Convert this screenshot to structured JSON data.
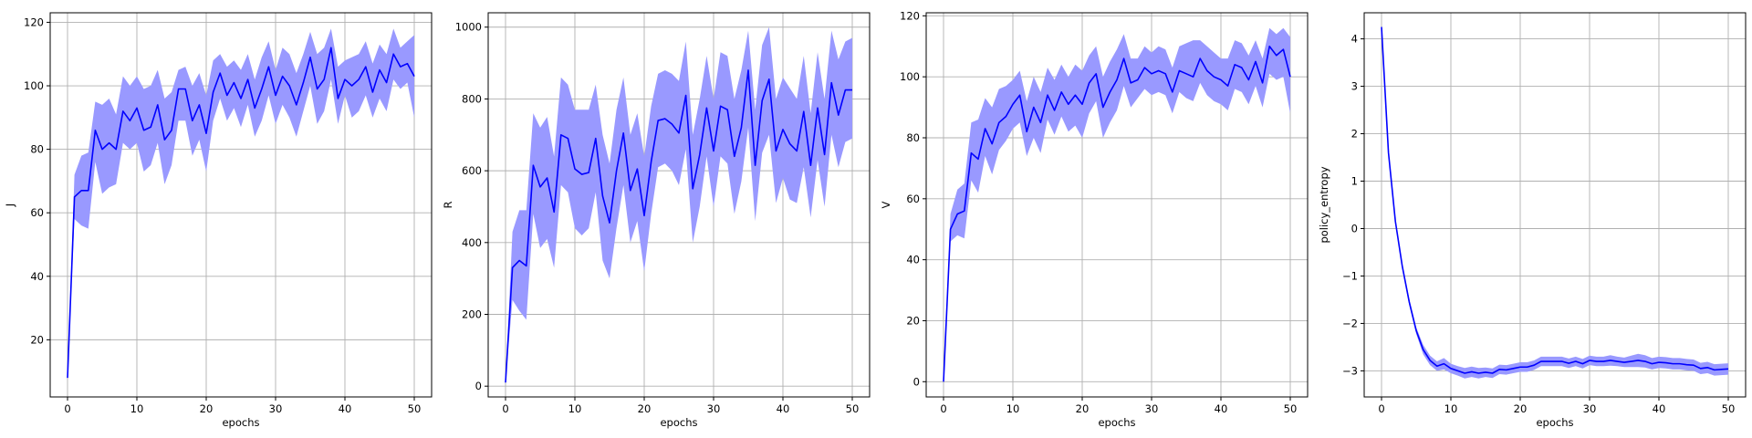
{
  "colors": {
    "line": "#0000ff",
    "band": "#9999ff",
    "grid": "#b0b0b0"
  },
  "chart_data": [
    {
      "type": "line",
      "xlabel": "epochs",
      "ylabel": "J",
      "xlim": [
        -2.5,
        52.5
      ],
      "ylim": [
        2,
        123
      ],
      "xticks": [
        0,
        10,
        20,
        30,
        40,
        50
      ],
      "yticks": [
        20,
        40,
        60,
        80,
        100,
        120
      ],
      "grid": true,
      "x": [
        0,
        1,
        2,
        3,
        4,
        5,
        6,
        7,
        8,
        9,
        10,
        11,
        12,
        13,
        14,
        15,
        16,
        17,
        18,
        19,
        20,
        21,
        22,
        23,
        24,
        25,
        26,
        27,
        28,
        29,
        30,
        31,
        32,
        33,
        34,
        35,
        36,
        37,
        38,
        39,
        40,
        41,
        42,
        43,
        44,
        45,
        46,
        47,
        48,
        49,
        50
      ],
      "series": [
        {
          "values": [
            8,
            65,
            67,
            67,
            86,
            80,
            82,
            80,
            92,
            89,
            93,
            86,
            87,
            94,
            83,
            86,
            99,
            99,
            89,
            94,
            85,
            98,
            104,
            97,
            101,
            96,
            102,
            93,
            99,
            106,
            97,
            103,
            100,
            94,
            101,
            109,
            99,
            102,
            112,
            96,
            102,
            100,
            102,
            106,
            98,
            105,
            101,
            110,
            106,
            107,
            103
          ],
          "lower": [
            8,
            58,
            56,
            55,
            76,
            66,
            68,
            69,
            82,
            80,
            82,
            73,
            75,
            82,
            69,
            75,
            89,
            89,
            78,
            83,
            73,
            89,
            96,
            89,
            93,
            87,
            94,
            84,
            89,
            97,
            88,
            94,
            90,
            84,
            92,
            100,
            88,
            92,
            102,
            88,
            97,
            90,
            92,
            97,
            90,
            96,
            92,
            102,
            99,
            101,
            90
          ],
          "upper": [
            8,
            72,
            78,
            79,
            95,
            94,
            96,
            91,
            103,
            100,
            103,
            99,
            100,
            105,
            96,
            98,
            105,
            106,
            100,
            104,
            97,
            108,
            110,
            106,
            108,
            105,
            110,
            102,
            109,
            114,
            105,
            112,
            110,
            104,
            110,
            117,
            110,
            112,
            118,
            106,
            108,
            109,
            110,
            114,
            107,
            113,
            110,
            118,
            112,
            114,
            116
          ]
        }
      ]
    },
    {
      "type": "line",
      "xlabel": "epochs",
      "ylabel": "R",
      "xlim": [
        -2.5,
        52.5
      ],
      "ylim": [
        -30,
        1040
      ],
      "xticks": [
        0,
        10,
        20,
        30,
        40,
        50
      ],
      "yticks": [
        0,
        200,
        400,
        600,
        800,
        1000
      ],
      "grid": true,
      "x": [
        0,
        1,
        2,
        3,
        4,
        5,
        6,
        7,
        8,
        9,
        10,
        11,
        12,
        13,
        14,
        15,
        16,
        17,
        18,
        19,
        20,
        21,
        22,
        23,
        24,
        25,
        26,
        27,
        28,
        29,
        30,
        31,
        32,
        33,
        34,
        35,
        36,
        37,
        38,
        39,
        40,
        41,
        42,
        43,
        44,
        45,
        46,
        47,
        48,
        49,
        50
      ],
      "series": [
        {
          "values": [
            10,
            330,
            350,
            335,
            615,
            555,
            580,
            485,
            700,
            690,
            605,
            590,
            595,
            690,
            530,
            455,
            600,
            705,
            545,
            605,
            475,
            625,
            740,
            745,
            730,
            705,
            810,
            550,
            645,
            775,
            655,
            780,
            770,
            640,
            720,
            880,
            615,
            795,
            855,
            655,
            715,
            675,
            655,
            765,
            615,
            775,
            645,
            845,
            755,
            825,
            825
          ],
          "lower": [
            10,
            240,
            210,
            185,
            480,
            385,
            410,
            330,
            560,
            540,
            440,
            420,
            440,
            540,
            350,
            300,
            440,
            560,
            400,
            460,
            320,
            480,
            610,
            620,
            600,
            560,
            660,
            400,
            500,
            640,
            500,
            640,
            620,
            480,
            570,
            720,
            460,
            650,
            700,
            510,
            580,
            520,
            510,
            610,
            470,
            630,
            500,
            700,
            610,
            680,
            690
          ],
          "upper": [
            10,
            430,
            490,
            490,
            760,
            720,
            750,
            640,
            860,
            840,
            770,
            770,
            770,
            840,
            700,
            620,
            770,
            860,
            700,
            760,
            640,
            780,
            870,
            880,
            870,
            850,
            960,
            700,
            800,
            920,
            800,
            930,
            920,
            800,
            880,
            990,
            770,
            950,
            1000,
            800,
            860,
            830,
            800,
            920,
            760,
            930,
            800,
            990,
            910,
            960,
            970
          ]
        }
      ]
    },
    {
      "type": "line",
      "xlabel": "epochs",
      "ylabel": "V",
      "xlim": [
        -2.5,
        52.5
      ],
      "ylim": [
        -5,
        121
      ],
      "xticks": [
        0,
        10,
        20,
        30,
        40,
        50
      ],
      "yticks": [
        0,
        20,
        40,
        60,
        80,
        100,
        120
      ],
      "grid": true,
      "x": [
        0,
        1,
        2,
        3,
        4,
        5,
        6,
        7,
        8,
        9,
        10,
        11,
        12,
        13,
        14,
        15,
        16,
        17,
        18,
        19,
        20,
        21,
        22,
        23,
        24,
        25,
        26,
        27,
        28,
        29,
        30,
        31,
        32,
        33,
        34,
        35,
        36,
        37,
        38,
        39,
        40,
        41,
        42,
        43,
        44,
        45,
        46,
        47,
        48,
        49,
        50
      ],
      "series": [
        {
          "values": [
            0,
            50,
            55,
            56,
            75,
            73,
            83,
            78,
            85,
            87,
            91,
            94,
            82,
            90,
            85,
            94,
            89,
            95,
            91,
            94,
            91,
            98,
            101,
            90,
            95,
            99,
            106,
            98,
            99,
            103,
            101,
            102,
            101,
            95,
            102,
            101,
            100,
            106,
            102,
            100,
            99,
            97,
            104,
            103,
            99,
            105,
            98,
            110,
            107,
            109,
            100
          ],
          "lower": [
            0,
            46,
            48,
            47,
            66,
            62,
            74,
            68,
            76,
            79,
            83,
            85,
            74,
            80,
            75,
            86,
            81,
            87,
            82,
            84,
            80,
            88,
            92,
            80,
            85,
            89,
            97,
            90,
            93,
            96,
            94,
            95,
            94,
            88,
            95,
            93,
            92,
            98,
            94,
            92,
            91,
            89,
            96,
            95,
            91,
            97,
            90,
            101,
            99,
            100,
            88
          ],
          "upper": [
            0,
            55,
            63,
            65,
            85,
            86,
            93,
            90,
            96,
            97,
            99,
            102,
            92,
            100,
            95,
            103,
            99,
            104,
            100,
            104,
            102,
            107,
            110,
            100,
            105,
            109,
            114,
            106,
            106,
            110,
            108,
            110,
            109,
            103,
            110,
            111,
            112,
            112,
            110,
            108,
            106,
            106,
            112,
            111,
            107,
            112,
            106,
            116,
            114,
            116,
            113
          ]
        }
      ]
    },
    {
      "type": "line",
      "xlabel": "epochs",
      "ylabel": "policy_entropy",
      "xlim": [
        -2.5,
        52.5
      ],
      "ylim": [
        -3.55,
        4.55
      ],
      "xticks": [
        0,
        10,
        20,
        30,
        40,
        50
      ],
      "yticks": [
        -3,
        -2,
        -1,
        0,
        1,
        2,
        3,
        4
      ],
      "grid": true,
      "x": [
        0,
        1,
        2,
        3,
        4,
        5,
        6,
        7,
        8,
        9,
        10,
        11,
        12,
        13,
        14,
        15,
        16,
        17,
        18,
        19,
        20,
        21,
        22,
        23,
        24,
        25,
        26,
        27,
        28,
        29,
        30,
        31,
        32,
        33,
        34,
        35,
        36,
        37,
        38,
        39,
        40,
        41,
        42,
        43,
        44,
        45,
        46,
        47,
        48,
        49,
        50
      ],
      "series": [
        {
          "values": [
            4.25,
            1.6,
            0.15,
            -0.8,
            -1.55,
            -2.15,
            -2.55,
            -2.78,
            -2.9,
            -2.85,
            -2.95,
            -3.0,
            -3.05,
            -3.02,
            -3.05,
            -3.03,
            -3.05,
            -2.97,
            -2.98,
            -2.95,
            -2.92,
            -2.92,
            -2.88,
            -2.8,
            -2.8,
            -2.8,
            -2.8,
            -2.84,
            -2.8,
            -2.85,
            -2.78,
            -2.8,
            -2.8,
            -2.78,
            -2.8,
            -2.82,
            -2.8,
            -2.78,
            -2.8,
            -2.85,
            -2.82,
            -2.83,
            -2.85,
            -2.85,
            -2.87,
            -2.88,
            -2.95,
            -2.93,
            -2.98,
            -2.97,
            -2.96
          ],
          "lower": [
            4.25,
            1.6,
            0.12,
            -0.85,
            -1.62,
            -2.22,
            -2.65,
            -2.88,
            -3.0,
            -2.97,
            -3.05,
            -3.1,
            -3.16,
            -3.13,
            -3.16,
            -3.13,
            -3.15,
            -3.07,
            -3.08,
            -3.05,
            -3.02,
            -3.02,
            -2.98,
            -2.9,
            -2.9,
            -2.9,
            -2.9,
            -2.94,
            -2.9,
            -2.95,
            -2.88,
            -2.9,
            -2.9,
            -2.89,
            -2.9,
            -2.92,
            -2.92,
            -2.92,
            -2.93,
            -2.97,
            -2.94,
            -2.95,
            -2.97,
            -2.97,
            -2.99,
            -3.0,
            -3.07,
            -3.05,
            -3.1,
            -3.09,
            -3.08
          ],
          "upper": [
            4.25,
            1.6,
            0.18,
            -0.75,
            -1.48,
            -2.08,
            -2.45,
            -2.68,
            -2.8,
            -2.73,
            -2.85,
            -2.9,
            -2.94,
            -2.91,
            -2.94,
            -2.93,
            -2.95,
            -2.87,
            -2.88,
            -2.85,
            -2.82,
            -2.82,
            -2.78,
            -2.7,
            -2.7,
            -2.7,
            -2.7,
            -2.74,
            -2.7,
            -2.75,
            -2.68,
            -2.7,
            -2.7,
            -2.67,
            -2.7,
            -2.72,
            -2.68,
            -2.64,
            -2.67,
            -2.73,
            -2.7,
            -2.71,
            -2.73,
            -2.73,
            -2.75,
            -2.76,
            -2.83,
            -2.81,
            -2.86,
            -2.85,
            -2.84
          ]
        }
      ]
    }
  ]
}
